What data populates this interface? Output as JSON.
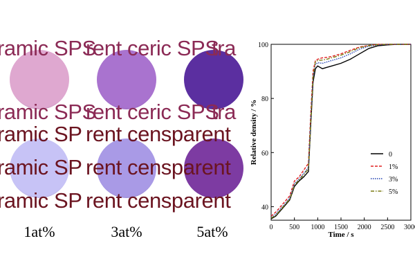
{
  "photo": {
    "text_rows": [
      [
        "ramic SPS",
        "rent ceric SPS",
        " tra"
      ],
      [
        "ramic SPS",
        "rent ceric SPS",
        " tra"
      ],
      [
        "ramic SP",
        "rent censparent",
        ""
      ],
      [
        "ramic SP",
        "rent censparent",
        ""
      ],
      [
        "ramic SP",
        "rent censparent",
        ""
      ]
    ],
    "sample_labels": [
      "1at%",
      "3at%",
      "5at%"
    ],
    "colors": {
      "text_top": "#8b2a55",
      "text_bottom": "#6b1420",
      "disc_1at_top": "#dfa8d0",
      "disc_3at_top": "#a973cf",
      "disc_5at_top": "#5b2fa0",
      "disc_1at_bottom": "#c7c3f6",
      "disc_3at_bottom": "#a99ae6",
      "disc_5at_bottom": "#7d3ba2"
    }
  },
  "chart_data": {
    "type": "line",
    "xlabel": "Time / s",
    "ylabel": "Relative density / %",
    "xlim": [
      0,
      3000
    ],
    "ylim": [
      35,
      100
    ],
    "xticks": [
      0,
      500,
      1000,
      1500,
      2000,
      2500,
      3000
    ],
    "yticks": [
      40,
      60,
      80,
      100
    ],
    "legend_position": "right",
    "series": [
      {
        "name": "0",
        "color": "#000000",
        "dash": "solid",
        "x": [
          0,
          100,
          200,
          300,
          400,
          500,
          600,
          700,
          800,
          850,
          900,
          950,
          1000,
          1100,
          1200,
          1300,
          1500,
          1700,
          1900,
          2100,
          2300,
          2500,
          2700,
          2900,
          3000
        ],
        "y": [
          35.5,
          36.5,
          38.5,
          40.5,
          42.5,
          47.5,
          49.5,
          51,
          53,
          70,
          86,
          91,
          92,
          91,
          91.5,
          92,
          93,
          94.5,
          96.5,
          98.5,
          99.5,
          99.8,
          100,
          100,
          100
        ]
      },
      {
        "name": "1%",
        "color": "#e02020",
        "dash": "dashed",
        "x": [
          0,
          100,
          200,
          300,
          400,
          500,
          600,
          700,
          800,
          850,
          900,
          950,
          1000,
          1100,
          1200,
          1300,
          1500,
          1700,
          1900,
          2100,
          2300,
          2500,
          2700,
          2900,
          3000
        ],
        "y": [
          36.5,
          38,
          40,
          42,
          44,
          49.5,
          51,
          53.5,
          56,
          74,
          90,
          94,
          94.5,
          95,
          95.2,
          95.5,
          96.5,
          97.8,
          99,
          99.6,
          100,
          100,
          100,
          100,
          100
        ]
      },
      {
        "name": "3%",
        "color": "#2040b0",
        "dash": "dotted",
        "x": [
          0,
          100,
          200,
          300,
          400,
          500,
          600,
          700,
          800,
          850,
          900,
          950,
          1000,
          1100,
          1200,
          1300,
          1500,
          1700,
          1900,
          2100,
          2300,
          2500,
          2700,
          2900,
          3000
        ],
        "y": [
          36,
          37.2,
          39.2,
          41.2,
          43.2,
          48.5,
          50.2,
          52.3,
          54.5,
          72,
          88,
          92.5,
          93.2,
          93,
          93.5,
          94,
          95,
          96.5,
          98.2,
          99.3,
          99.8,
          100,
          100,
          100,
          100
        ]
      },
      {
        "name": "5%",
        "color": "#7a7a10",
        "dash": "dashdot",
        "x": [
          0,
          100,
          200,
          300,
          400,
          500,
          600,
          700,
          800,
          850,
          900,
          950,
          1000,
          1100,
          1200,
          1300,
          1500,
          1700,
          1900,
          2100,
          2300,
          2500,
          2700,
          2900,
          3000
        ],
        "y": [
          35.8,
          36.8,
          38.8,
          40.8,
          42.8,
          48,
          49.8,
          51.8,
          54,
          71,
          88,
          93.5,
          94,
          94.2,
          94.5,
          95,
          96,
          97.3,
          98.8,
          99.5,
          99.9,
          100,
          100,
          100,
          100
        ]
      }
    ]
  }
}
